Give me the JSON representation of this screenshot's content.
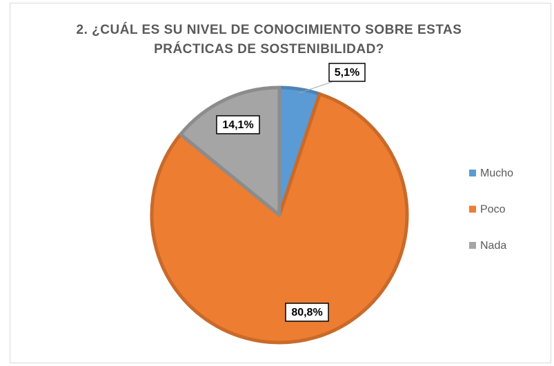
{
  "chart_data": {
    "type": "pie",
    "title": "2. ¿CUÁL ES SU NIVEL DE CONOCIMIENTO SOBRE ESTAS PRÁCTICAS DE SOSTENIBILIDAD?",
    "categories": [
      "Mucho",
      "Poco",
      "Nada"
    ],
    "values": [
      5.1,
      80.8,
      14.1
    ],
    "value_labels": [
      "5,1%",
      "80,8%",
      "14,1%"
    ],
    "colors": [
      "#5b9bd5",
      "#ed7d31",
      "#a5a5a5"
    ],
    "legend": "right"
  }
}
